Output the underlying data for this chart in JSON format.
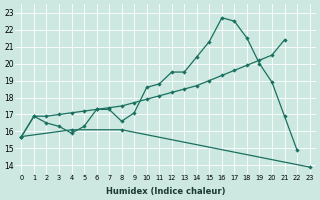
{
  "xlabel": "Humidex (Indice chaleur)",
  "bg_color": "#cce8e0",
  "line_color": "#1a7060",
  "xlim": [
    -0.5,
    23.5
  ],
  "ylim": [
    13.5,
    23.5
  ],
  "xticks": [
    0,
    1,
    2,
    3,
    4,
    5,
    6,
    7,
    8,
    9,
    10,
    11,
    12,
    13,
    14,
    15,
    16,
    17,
    18,
    19,
    20,
    21,
    22,
    23
  ],
  "yticks": [
    14,
    15,
    16,
    17,
    18,
    19,
    20,
    21,
    22,
    23
  ],
  "line1_y": [
    15.7,
    16.9,
    16.5,
    16.3,
    15.9,
    16.3,
    17.3,
    17.3,
    16.6,
    17.1,
    18.6,
    18.8,
    19.5,
    19.5,
    20.4,
    21.3,
    22.7,
    22.5,
    21.5,
    20.0,
    18.9,
    16.9,
    14.9,
    null
  ],
  "line2_y": [
    15.7,
    null,
    null,
    null,
    16.1,
    null,
    null,
    null,
    16.1,
    null,
    null,
    null,
    null,
    null,
    null,
    null,
    null,
    null,
    null,
    null,
    null,
    null,
    null,
    13.9
  ],
  "line3_y": [
    15.7,
    16.9,
    16.9,
    17.0,
    17.1,
    17.2,
    17.3,
    17.4,
    17.5,
    17.7,
    17.9,
    18.1,
    18.3,
    18.5,
    18.7,
    19.0,
    19.3,
    19.6,
    19.9,
    20.2,
    20.5,
    21.4,
    null,
    null
  ]
}
